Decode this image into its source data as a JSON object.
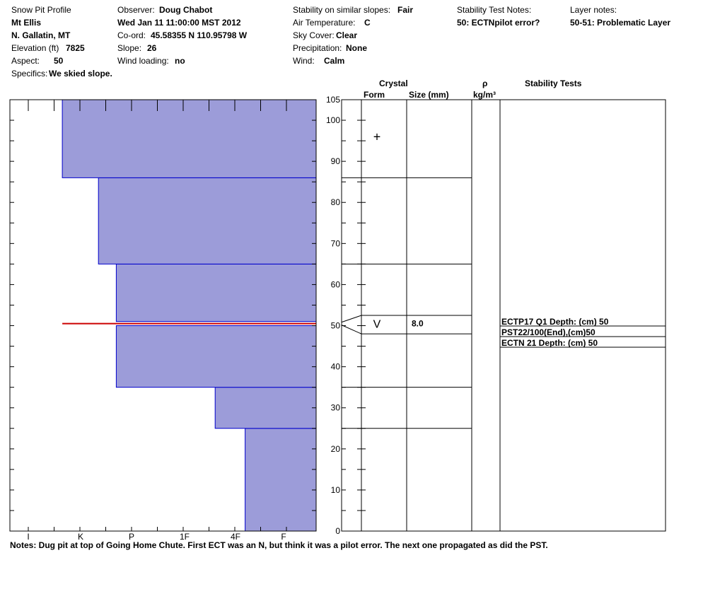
{
  "header": {
    "title": "Snow Pit Profile",
    "location": "Mt Ellis",
    "range": "N. Gallatin, MT",
    "elevation_label": "Elevation (ft)",
    "elevation_value": "7825",
    "aspect_label": "Aspect:",
    "aspect_value": "50",
    "specifics_label": "Specifics:",
    "specifics_value": "We skied slope.",
    "observer_label": "Observer:",
    "observer_value": "Doug Chabot",
    "datetime": "Wed Jan 11 11:00:00 MST 2012",
    "coord_label": "Co-ord:",
    "coord_value": "45.58355 N 110.95798 W",
    "slope_label": "Slope:",
    "slope_value": "26",
    "wind_loading_label": "Wind loading:",
    "wind_loading_value": "no",
    "stability_label": "Stability on similar slopes:",
    "stability_value": "Fair",
    "air_temp_label": "Air Temperature:",
    "air_temp_value": "C",
    "sky_label": "Sky Cover:",
    "sky_value": "Clear",
    "precip_label": "Precipitation:",
    "precip_value": "None",
    "wind_label": "Wind:",
    "wind_value": "Calm",
    "stab_notes_label": "Stability Test Notes:",
    "stab_notes_value": "50: ECTNpilot error?",
    "layer_notes_label": "Layer notes:",
    "layer_notes_value": "50-51: Problematic Layer"
  },
  "columns": {
    "crystal": "Crystal",
    "form": "Form",
    "size": "Size (mm)",
    "rho": "ρ",
    "density_unit": "kg/m³",
    "stability_tests": "Stability Tests"
  },
  "notes": "Notes:  Dug pit at top of Going Home Chute.  First ECT was an N, but think it was a pilot error.  The next one propagated as did the PST.",
  "colors": {
    "hardness_fill": "#9c9cd9",
    "hardness_edge": "#0000cc",
    "weak_layer": "#cc0000"
  },
  "chart_data": {
    "type": "bar",
    "orientation": "horizontal",
    "y_axis": {
      "range": [
        0,
        105
      ],
      "ticks": [
        0,
        10,
        20,
        30,
        40,
        50,
        60,
        70,
        80,
        90,
        100,
        105
      ]
    },
    "x_axis": {
      "categories": [
        "I",
        "K",
        "P",
        "1F",
        "4F",
        "F"
      ],
      "direction": "decreasing-left"
    },
    "hardness_layers": [
      {
        "bottom": 0,
        "top": 25,
        "hardness_index": 4.2
      },
      {
        "bottom": 25,
        "top": 35,
        "hardness_index": 3.6
      },
      {
        "bottom": 35,
        "top": 50,
        "hardness_index": 1.7
      },
      {
        "bottom": 51,
        "top": 65,
        "hardness_index": 1.7
      },
      {
        "bottom": 65,
        "top": 86,
        "hardness_index": 1.35
      },
      {
        "bottom": 86,
        "top": 105,
        "hardness_index": 0.65
      }
    ],
    "weak_layer": {
      "depth": 50.5,
      "hardness_index": 0.65
    },
    "layer_boundaries": [
      25,
      35,
      65,
      86
    ],
    "weak_layer_band": {
      "bottom": 48,
      "top": 52.5,
      "form": "V",
      "size": "8.0"
    },
    "surface_form": {
      "depth": 96,
      "form": "+"
    },
    "stability_tests": [
      "ECTP17 Q1 Depth: (cm) 50",
      "PST22/100(End),(cm)50",
      "ECTN 21   Depth: (cm) 50"
    ]
  }
}
